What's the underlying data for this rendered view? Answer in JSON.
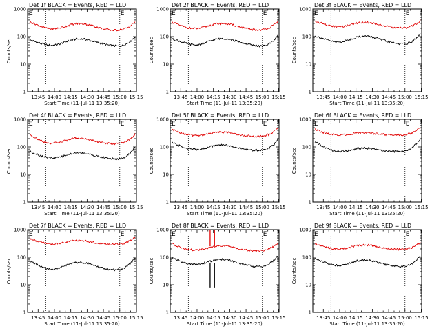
{
  "chart_data": [
    {
      "type": "line",
      "title": "Det 1f BLACK = Events, RED = LLD",
      "ylabel": "Counts/sec",
      "xlabel": "Start Time (11-Jul-11 13:35:20)",
      "yscale": "log",
      "ylim": [
        1,
        1000
      ],
      "yticks": [
        "1",
        "10",
        "100",
        "1000"
      ],
      "xticks": [
        "13:45",
        "14:00",
        "14:15",
        "14:30",
        "14:45",
        "15:00",
        "15:15"
      ],
      "xlim": [
        "13:35:20",
        "15:15:20"
      ],
      "vlines": [
        "13:52",
        "15:00"
      ],
      "markers": [
        "E",
        "E"
      ],
      "series": [
        {
          "color": "#000000",
          "values": [
            75,
            68,
            60,
            54,
            50,
            48,
            49,
            53,
            60,
            68,
            75,
            80,
            82,
            80,
            75,
            68,
            62,
            56,
            52,
            48,
            46,
            45,
            47,
            55,
            70,
            100
          ]
        },
        {
          "color": "#e00000",
          "values": [
            340,
            300,
            255,
            225,
            205,
            192,
            193,
            205,
            225,
            250,
            275,
            290,
            295,
            290,
            270,
            245,
            220,
            200,
            185,
            175,
            170,
            172,
            180,
            205,
            250,
            340
          ]
        }
      ]
    },
    {
      "type": "line",
      "title": "Det 2f BLACK = Events, RED = LLD",
      "ylabel": "Counts/sec",
      "xlabel": "Start Time (11-Jul-11 13:35:20)",
      "yscale": "log",
      "ylim": [
        1,
        1000
      ],
      "yticks": [
        "1",
        "10",
        "100",
        "1000"
      ],
      "xticks": [
        "13:45",
        "14:00",
        "14:15",
        "14:30",
        "14:45",
        "15:00",
        "15:15"
      ],
      "xlim": [
        "13:35:20",
        "15:15:20"
      ],
      "vlines": [
        "13:52",
        "15:00"
      ],
      "markers": [
        "E",
        "E"
      ],
      "series": [
        {
          "color": "#000000",
          "values": [
            82,
            74,
            66,
            58,
            53,
            50,
            50,
            54,
            61,
            70,
            78,
            84,
            86,
            83,
            77,
            70,
            63,
            57,
            53,
            49,
            46,
            45,
            47,
            55,
            72,
            105
          ]
        },
        {
          "color": "#e00000",
          "values": [
            330,
            290,
            250,
            222,
            205,
            195,
            196,
            208,
            230,
            255,
            280,
            295,
            300,
            292,
            272,
            248,
            225,
            205,
            190,
            180,
            175,
            176,
            184,
            210,
            255,
            345
          ]
        }
      ]
    },
    {
      "type": "line",
      "title": "Det 3f BLACK = Events, RED = LLD",
      "ylabel": "Counts/sec",
      "xlabel": "Start Time (11-Jul-11 13:35:20)",
      "yscale": "log",
      "ylim": [
        1,
        1000
      ],
      "yticks": [
        "1",
        "10",
        "100",
        "1000"
      ],
      "xticks": [
        "13:45",
        "14:00",
        "14:15",
        "14:30",
        "14:45",
        "15:00",
        "15:15"
      ],
      "xlim": [
        "13:35:20",
        "15:15:20"
      ],
      "vlines": [
        "13:52",
        "15:00"
      ],
      "markers": [
        "E",
        "E"
      ],
      "series": [
        {
          "color": "#000000",
          "values": [
            105,
            95,
            84,
            74,
            68,
            64,
            64,
            68,
            76,
            86,
            96,
            102,
            104,
            100,
            93,
            84,
            75,
            68,
            62,
            58,
            55,
            54,
            57,
            66,
            85,
            125
          ]
        },
        {
          "color": "#e00000",
          "values": [
            360,
            325,
            290,
            260,
            240,
            228,
            228,
            240,
            260,
            285,
            310,
            325,
            330,
            322,
            302,
            278,
            255,
            235,
            220,
            210,
            205,
            206,
            214,
            238,
            285,
            380
          ]
        }
      ]
    },
    {
      "type": "line",
      "title": "Det 4f BLACK = Events, RED = LLD",
      "ylabel": "Counts/sec",
      "xlabel": "Start Time (11-Jul-11 13:35:20)",
      "yscale": "log",
      "ylim": [
        1,
        1000
      ],
      "yticks": [
        "1",
        "10",
        "100",
        "1000"
      ],
      "xticks": [
        "13:45",
        "14:00",
        "14:15",
        "14:30",
        "14:45",
        "15:00",
        "15:15"
      ],
      "xlim": [
        "13:35:20",
        "15:15:20"
      ],
      "vlines": [
        "13:52",
        "15:00"
      ],
      "markers": [
        "E",
        "E"
      ],
      "series": [
        {
          "color": "#000000",
          "values": [
            70,
            60,
            52,
            46,
            42,
            40,
            40,
            42,
            46,
            52,
            57,
            60,
            61,
            59,
            55,
            50,
            46,
            43,
            40,
            38,
            37,
            37,
            39,
            46,
            62,
            100
          ]
        },
        {
          "color": "#e00000",
          "values": [
            280,
            230,
            190,
            160,
            145,
            138,
            138,
            145,
            160,
            178,
            195,
            205,
            207,
            200,
            185,
            168,
            155,
            145,
            138,
            133,
            131,
            132,
            138,
            158,
            200,
            290
          ]
        }
      ]
    },
    {
      "type": "line",
      "title": "Det 5f BLACK = Events, RED = LLD",
      "ylabel": "Counts/sec",
      "xlabel": "Start Time (11-Jul-11 13:35:20)",
      "yscale": "log",
      "ylim": [
        1,
        1000
      ],
      "yticks": [
        "1",
        "10",
        "100",
        "1000"
      ],
      "xticks": [
        "13:45",
        "14:00",
        "14:15",
        "14:30",
        "14:45",
        "15:00",
        "15:15"
      ],
      "xlim": [
        "13:35:20",
        "15:15:20"
      ],
      "vlines": [
        "13:52",
        "15:00"
      ],
      "markers": [
        "E",
        "E"
      ],
      "series": [
        {
          "color": "#000000",
          "values": [
            140,
            122,
            106,
            94,
            86,
            82,
            82,
            85,
            92,
            101,
            110,
            116,
            118,
            114,
            106,
            97,
            89,
            83,
            79,
            76,
            75,
            76,
            80,
            92,
            118,
            175
          ]
        },
        {
          "color": "#e00000",
          "values": [
            420,
            370,
            325,
            292,
            272,
            262,
            262,
            270,
            287,
            308,
            328,
            340,
            344,
            336,
            316,
            294,
            275,
            262,
            252,
            246,
            244,
            246,
            256,
            285,
            345,
            470
          ]
        }
      ]
    },
    {
      "type": "line",
      "title": "Det 6f BLACK = Events, RED = LLD",
      "ylabel": "Counts/sec",
      "xlabel": "Start Time (11-Jul-11 13:35:20)",
      "yscale": "log",
      "ylim": [
        1,
        1000
      ],
      "yticks": [
        "1",
        "10",
        "100",
        "1000"
      ],
      "xticks": [
        "13:45",
        "14:00",
        "14:15",
        "14:30",
        "14:45",
        "15:00",
        "15:15"
      ],
      "xlim": [
        "13:35:20",
        "15:15:20"
      ],
      "vlines": [
        "13:52",
        "15:00"
      ],
      "markers": [
        "E",
        "E"
      ],
      "series": [
        {
          "color": "#000000",
          "values": [
            150,
            125,
            102,
            86,
            76,
            70,
            69,
            70,
            74,
            80,
            86,
            90,
            91,
            88,
            83,
            78,
            74,
            71,
            69,
            68,
            68,
            70,
            76,
            92,
            125,
            190
          ]
        },
        {
          "color": "#e00000",
          "values": [
            440,
            380,
            330,
            298,
            280,
            272,
            272,
            276,
            288,
            302,
            315,
            322,
            324,
            318,
            306,
            294,
            284,
            278,
            274,
            272,
            272,
            276,
            290,
            325,
            390,
            480
          ]
        }
      ]
    },
    {
      "type": "line",
      "title": "Det 7f BLACK = Events, RED = LLD",
      "ylabel": "Counts/sec",
      "xlabel": "Start Time (11-Jul-11 13:35:20)",
      "yscale": "log",
      "ylim": [
        1,
        1000
      ],
      "yticks": [
        "1",
        "10",
        "100",
        "1000"
      ],
      "xticks": [
        "13:45",
        "14:00",
        "14:15",
        "14:30",
        "14:45",
        "15:00",
        "15:15"
      ],
      "xlim": [
        "13:35:20",
        "15:15:20"
      ],
      "vlines": [
        "13:52",
        "15:00"
      ],
      "markers": [
        "E",
        "E"
      ],
      "series": [
        {
          "color": "#000000",
          "values": [
            75,
            62,
            50,
            42,
            38,
            36,
            37,
            40,
            46,
            53,
            60,
            64,
            66,
            63,
            58,
            51,
            45,
            41,
            38,
            36,
            35,
            35,
            38,
            46,
            62,
            95
          ]
        },
        {
          "color": "#e00000",
          "values": [
            480,
            420,
            370,
            335,
            315,
            305,
            305,
            315,
            335,
            360,
            385,
            400,
            405,
            395,
            372,
            348,
            328,
            312,
            302,
            296,
            294,
            296,
            308,
            345,
            420,
            520
          ]
        }
      ]
    },
    {
      "type": "line",
      "title": "Det 8f BLACK = Events, RED = LLD",
      "ylabel": "Counts/sec",
      "xlabel": "Start Time (11-Jul-11 13:35:20)",
      "yscale": "log",
      "ylim": [
        1,
        1000
      ],
      "yticks": [
        "1",
        "10",
        "100",
        "1000"
      ],
      "xticks": [
        "13:45",
        "14:00",
        "14:15",
        "14:30",
        "14:45",
        "15:00",
        "15:15"
      ],
      "xlim": [
        "13:35:20",
        "15:15:20"
      ],
      "vlines": [
        "13:52",
        "15:00"
      ],
      "markers": [
        "E",
        "E"
      ],
      "series": [
        {
          "color": "#000000",
          "values": [
            95,
            82,
            71,
            63,
            58,
            55,
            55,
            58,
            64,
            71,
            78,
            82,
            84,
            80,
            74,
            66,
            59,
            54,
            50,
            47,
            45,
            45,
            48,
            57,
            75,
            110
          ]
        },
        {
          "color": "#e00000",
          "values": [
            300,
            262,
            228,
            204,
            190,
            182,
            182,
            190,
            204,
            222,
            240,
            252,
            256,
            250,
            234,
            216,
            200,
            188,
            178,
            172,
            170,
            171,
            178,
            200,
            242,
            330
          ]
        }
      ]
    },
    {
      "type": "line",
      "title": "Det 9f BLACK = Events, RED = LLD",
      "ylabel": "Counts/sec",
      "xlabel": "Start Time (11-Jul-11 13:35:20)",
      "yscale": "log",
      "ylim": [
        1,
        1000
      ],
      "yticks": [
        "1",
        "10",
        "100",
        "1000"
      ],
      "xticks": [
        "13:45",
        "14:00",
        "14:15",
        "14:30",
        "14:45",
        "15:00",
        "15:15"
      ],
      "xlim": [
        "13:35:20",
        "15:15:20"
      ],
      "vlines": [
        "13:52",
        "15:00"
      ],
      "markers": [
        "E",
        "E"
      ],
      "series": [
        {
          "color": "#000000",
          "values": [
            90,
            78,
            67,
            59,
            54,
            51,
            51,
            54,
            60,
            67,
            74,
            78,
            80,
            77,
            71,
            64,
            58,
            53,
            50,
            47,
            46,
            46,
            49,
            58,
            75,
            110
          ]
        },
        {
          "color": "#e00000",
          "values": [
            320,
            282,
            248,
            222,
            206,
            198,
            198,
            206,
            222,
            242,
            262,
            274,
            278,
            272,
            256,
            238,
            222,
            210,
            200,
            194,
            192,
            193,
            200,
            222,
            266,
            350
          ]
        }
      ]
    }
  ],
  "spikes": {
    "panel": 7,
    "red_top": 1000,
    "black_bottom": 8,
    "times": [
      "14:12",
      "14:16"
    ]
  }
}
